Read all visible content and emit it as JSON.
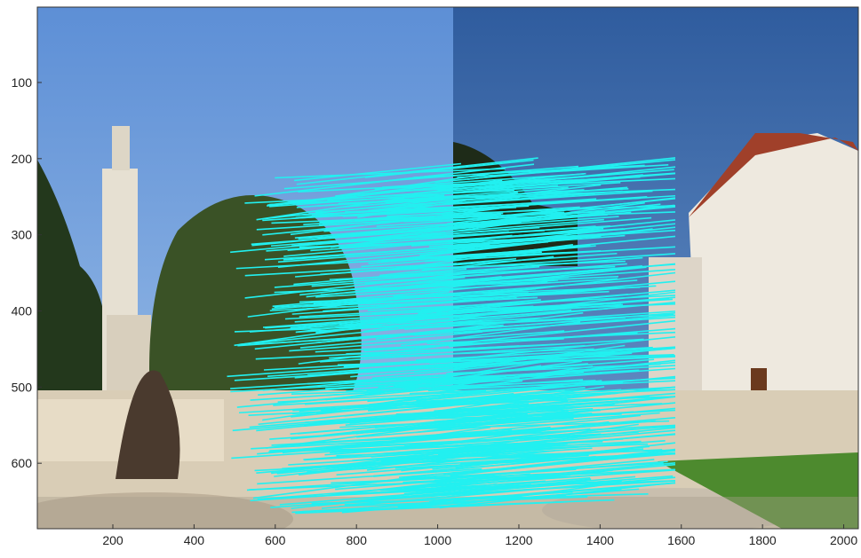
{
  "chart_data": {
    "type": "image",
    "xlim": [
      14,
      2036
    ],
    "ylim": [
      1,
      686
    ],
    "y_reversed": true,
    "xticks": [
      200,
      400,
      600,
      800,
      1000,
      1200,
      1400,
      1600,
      1800,
      2000
    ],
    "yticks": [
      100,
      200,
      300,
      400,
      500,
      600
    ],
    "line_color": "#22f0f0"
  }
}
